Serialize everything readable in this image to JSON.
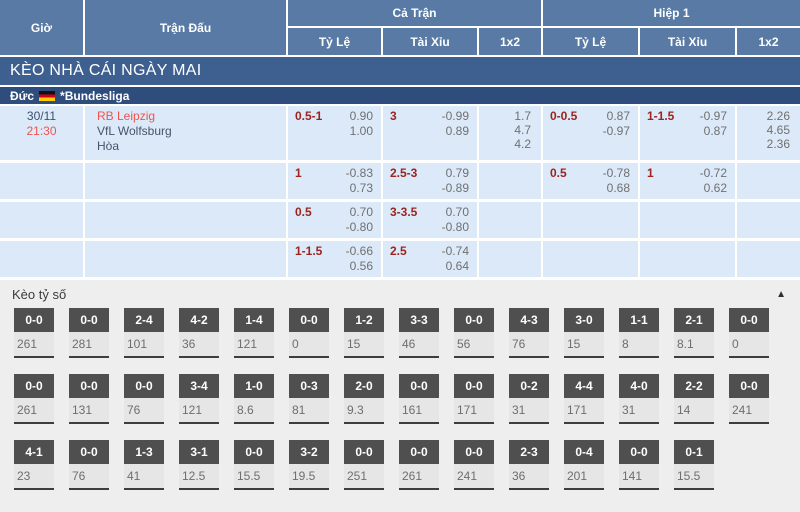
{
  "header": {
    "col_time": "Giờ",
    "col_match": "Trận Đấu",
    "group_full": "Cả Trận",
    "group_half": "Hiệp 1",
    "sub_handicap": "Tỷ Lệ",
    "sub_over_under": "Tài Xỉu",
    "sub_1x2": "1x2"
  },
  "banner": {
    "title": "KÈO NHÀ CÁI NGÀY MAI"
  },
  "league": {
    "country": "Đức",
    "flag_icon": "germany-flag",
    "name": "*Bundesliga"
  },
  "match": {
    "date": "30/11",
    "time": "21:30",
    "home": "RB Leipzig",
    "away": "VfL Wolfsburg",
    "draw_label": "Hòa"
  },
  "odds_rows": [
    {
      "ft_handicap": {
        "line": "0.5-1",
        "odds": [
          "0.90",
          "1.00"
        ]
      },
      "ft_over_under": {
        "line": "3",
        "odds": [
          "-0.99",
          "0.89"
        ]
      },
      "ft_1x2": [
        "1.7",
        "4.7",
        "4.2"
      ],
      "h1_handicap": {
        "line": "0-0.5",
        "odds": [
          "0.87",
          "-0.97"
        ]
      },
      "h1_over_under": {
        "line": "1-1.5",
        "odds": [
          "-0.97",
          "0.87"
        ]
      },
      "h1_1x2": [
        "2.26",
        "4.65",
        "2.36"
      ]
    },
    {
      "ft_handicap": {
        "line": "1",
        "odds": [
          "-0.83",
          "0.73"
        ]
      },
      "ft_over_under": {
        "line": "2.5-3",
        "odds": [
          "0.79",
          "-0.89"
        ]
      },
      "ft_1x2": [],
      "h1_handicap": {
        "line": "0.5",
        "odds": [
          "-0.78",
          "0.68"
        ]
      },
      "h1_over_under": {
        "line": "1",
        "odds": [
          "-0.72",
          "0.62"
        ]
      },
      "h1_1x2": []
    },
    {
      "ft_handicap": {
        "line": "0.5",
        "odds": [
          "0.70",
          "-0.80"
        ]
      },
      "ft_over_under": {
        "line": "3-3.5",
        "odds": [
          "0.70",
          "-0.80"
        ]
      },
      "ft_1x2": [],
      "h1_handicap": null,
      "h1_over_under": null,
      "h1_1x2": []
    },
    {
      "ft_handicap": {
        "line": "1-1.5",
        "odds": [
          "-0.66",
          "0.56"
        ]
      },
      "ft_over_under": {
        "line": "2.5",
        "odds": [
          "-0.74",
          "0.64"
        ]
      },
      "ft_1x2": [],
      "h1_handicap": null,
      "h1_over_under": null,
      "h1_1x2": []
    }
  ],
  "correct_score": {
    "title": "Kèo tỷ số",
    "collapse_icon": "chevron-up",
    "rows": [
      [
        {
          "score": "0-0",
          "value": "261"
        },
        {
          "score": "0-0",
          "value": "281"
        },
        {
          "score": "2-4",
          "value": "101"
        },
        {
          "score": "4-2",
          "value": "36"
        },
        {
          "score": "1-4",
          "value": "121"
        },
        {
          "score": "0-0",
          "value": "0"
        },
        {
          "score": "1-2",
          "value": "15"
        },
        {
          "score": "3-3",
          "value": "46"
        },
        {
          "score": "0-0",
          "value": "56"
        },
        {
          "score": "4-3",
          "value": "76"
        },
        {
          "score": "3-0",
          "value": "15"
        },
        {
          "score": "1-1",
          "value": "8"
        },
        {
          "score": "2-1",
          "value": "8.1"
        },
        {
          "score": "0-0",
          "value": "0"
        }
      ],
      [
        {
          "score": "0-0",
          "value": "261"
        },
        {
          "score": "0-0",
          "value": "131"
        },
        {
          "score": "0-0",
          "value": "76"
        },
        {
          "score": "3-4",
          "value": "121"
        },
        {
          "score": "1-0",
          "value": "8.6"
        },
        {
          "score": "0-3",
          "value": "81"
        },
        {
          "score": "2-0",
          "value": "9.3"
        },
        {
          "score": "0-0",
          "value": "161"
        },
        {
          "score": "0-0",
          "value": "171"
        },
        {
          "score": "0-2",
          "value": "31"
        },
        {
          "score": "4-4",
          "value": "171"
        },
        {
          "score": "4-0",
          "value": "31"
        },
        {
          "score": "2-2",
          "value": "14"
        },
        {
          "score": "0-0",
          "value": "241"
        }
      ],
      [
        {
          "score": "4-1",
          "value": "23"
        },
        {
          "score": "0-0",
          "value": "76"
        },
        {
          "score": "1-3",
          "value": "41"
        },
        {
          "score": "3-1",
          "value": "12.5"
        },
        {
          "score": "0-0",
          "value": "15.5"
        },
        {
          "score": "3-2",
          "value": "19.5"
        },
        {
          "score": "0-0",
          "value": "251"
        },
        {
          "score": "0-0",
          "value": "261"
        },
        {
          "score": "0-0",
          "value": "241"
        },
        {
          "score": "2-3",
          "value": "36"
        },
        {
          "score": "0-4",
          "value": "201"
        },
        {
          "score": "0-0",
          "value": "141"
        },
        {
          "score": "0-1",
          "value": "15.5"
        }
      ]
    ]
  },
  "colors": {
    "header_bg": "#587aa5",
    "banner_bg": "#3d6090",
    "league_bg": "#2e4d7d",
    "row_bg": "#dce9f8",
    "handicap_line": "#9c241f",
    "odds_text": "#707070",
    "highlight_red": "#f0534f",
    "score_box_bg": "#4f4f4f",
    "score_section_bg": "#eeeeee"
  }
}
